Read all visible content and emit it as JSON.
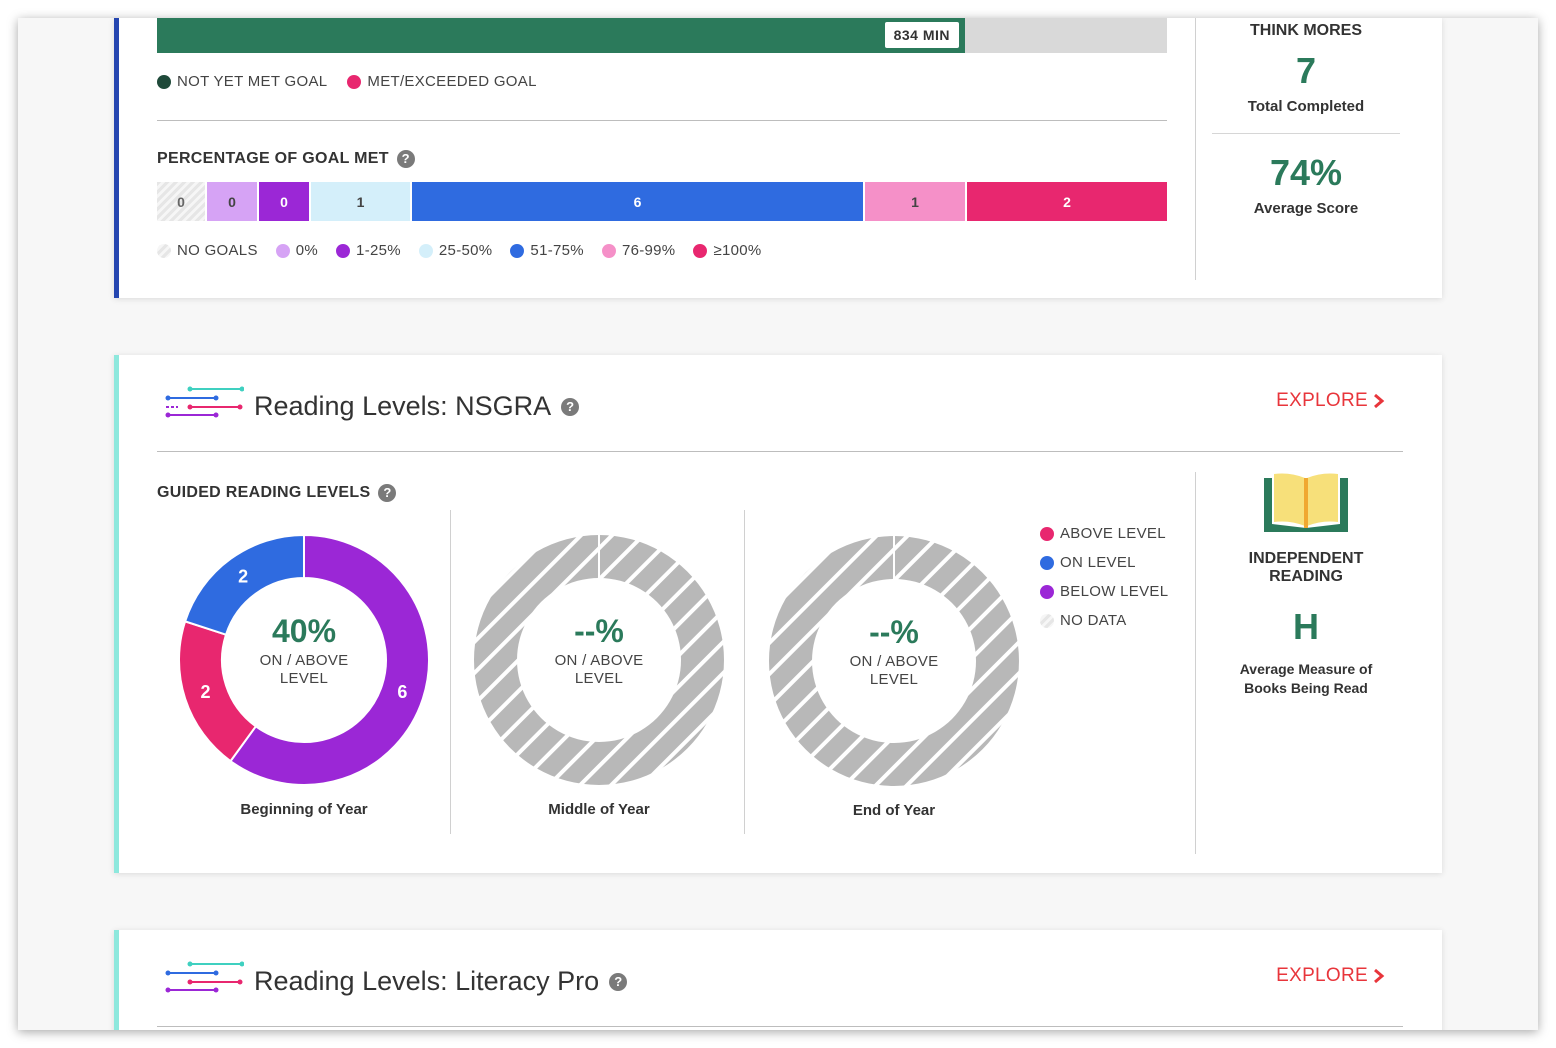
{
  "minutes": {
    "badge": "834 MIN",
    "fraction": 0.8,
    "legend": [
      {
        "label": "NOT YET MET GOAL",
        "color": "#1f4a3a"
      },
      {
        "label": "MET/EXCEEDED GOAL",
        "color": "#e8276f"
      }
    ]
  },
  "percentage_goal": {
    "title": "PERCENTAGE OF GOAL MET",
    "segments": [
      {
        "value": "0",
        "color": "hatch",
        "text_color": "#666",
        "weight": 48
      },
      {
        "value": "0",
        "color": "#d6a3f5",
        "text_color": "#444",
        "weight": 50
      },
      {
        "value": "0",
        "color": "#9b27d6",
        "text_color": "#fff",
        "weight": 50
      },
      {
        "value": "1",
        "color": "#d4effa",
        "text_color": "#444",
        "weight": 99
      },
      {
        "value": "6",
        "color": "#2f6be0",
        "text_color": "#fff",
        "weight": 451
      },
      {
        "value": "1",
        "color": "#f590c8",
        "text_color": "#444",
        "weight": 100
      },
      {
        "value": "2",
        "color": "#e8276f",
        "text_color": "#fff",
        "weight": 200
      }
    ],
    "legend": [
      {
        "label": "NO GOALS",
        "color": "hatch"
      },
      {
        "label": "0%",
        "color": "#d6a3f5"
      },
      {
        "label": "1-25%",
        "color": "#9b27d6"
      },
      {
        "label": "25-50%",
        "color": "#d4effa"
      },
      {
        "label": "51-75%",
        "color": "#2f6be0"
      },
      {
        "label": "76-99%",
        "color": "#f590c8"
      },
      {
        "label": "≥100%",
        "color": "#e8276f"
      }
    ]
  },
  "think_mores": {
    "title": "THINK MORES",
    "total": "7",
    "total_label": "Total Completed",
    "avg": "74%",
    "avg_label": "Average Score"
  },
  "nsgra": {
    "title": "Reading Levels: NSGRA",
    "explore": "EXPLORE",
    "section": "GUIDED READING LEVELS",
    "donuts": [
      {
        "period": "Beginning of Year",
        "pct": "40%",
        "caption1": "ON / ABOVE",
        "caption2": "LEVEL",
        "slices": [
          {
            "value": 6,
            "label": "6",
            "color": "#9b27d6"
          },
          {
            "value": 2,
            "label": "2",
            "color": "#e8276f"
          },
          {
            "value": 2,
            "label": "2",
            "color": "#2f6be0"
          }
        ]
      },
      {
        "period": "Middle of Year",
        "pct": "--%",
        "caption1": "ON / ABOVE",
        "caption2": "LEVEL",
        "slices": []
      },
      {
        "period": "End of Year",
        "pct": "--%",
        "caption1": "ON / ABOVE",
        "caption2": "LEVEL",
        "slices": []
      }
    ],
    "legend": [
      {
        "label": "ABOVE LEVEL",
        "color": "#e8276f"
      },
      {
        "label": "ON LEVEL",
        "color": "#2f6be0"
      },
      {
        "label": "BELOW LEVEL",
        "color": "#9b27d6"
      },
      {
        "label": "NO DATA",
        "color": "hatch"
      }
    ],
    "independent": {
      "title1": "INDEPENDENT",
      "title2": "READING",
      "level": "H",
      "caption1": "Average Measure of",
      "caption2": "Books Being Read"
    }
  },
  "literacy_pro": {
    "title": "Reading Levels: Literacy Pro",
    "explore": "EXPLORE"
  }
}
